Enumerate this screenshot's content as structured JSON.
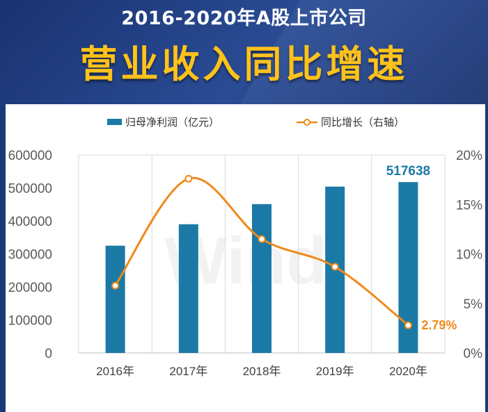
{
  "header": {
    "title_line1": "2016-2020年A股上市公司",
    "title_line2": "营业收入同比增速"
  },
  "watermark": "Wind",
  "colors": {
    "bar": "#1a7aa5",
    "line": "#f0891a",
    "bar_label": "#1a7aa5",
    "line_label": "#f0891a",
    "title_line2": "#ffc21a"
  },
  "chart_data": {
    "type": "bar",
    "categories": [
      "2016年",
      "2017年",
      "2018年",
      "2019年",
      "2020年"
    ],
    "series": [
      {
        "name": "归母净利润（亿元）",
        "type": "bar",
        "axis": "left",
        "values": [
          325000,
          390000,
          451000,
          504000,
          517638
        ]
      },
      {
        "name": "同比增长（右轴）",
        "type": "line",
        "axis": "right",
        "values": [
          6.8,
          17.6,
          11.5,
          8.7,
          2.79
        ]
      }
    ],
    "y_left": {
      "lim": [
        0,
        600000
      ],
      "ticks": [
        "0",
        "100000",
        "200000",
        "300000",
        "400000",
        "500000",
        "600000"
      ]
    },
    "y_right": {
      "lim": [
        0,
        20
      ],
      "ticks": [
        "0%",
        "5%",
        "10%",
        "15%",
        "20%"
      ]
    },
    "annotations": {
      "bar_last": "517638",
      "line_last": "2.79%"
    },
    "legend_position": "top-center",
    "grid": "vertical"
  }
}
